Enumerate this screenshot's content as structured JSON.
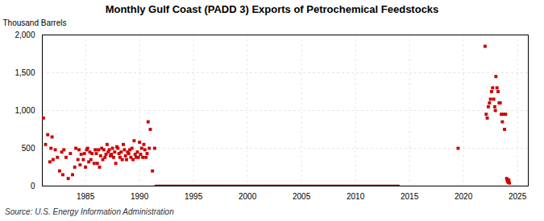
{
  "chart_data": {
    "type": "scatter",
    "title": "Monthly Gulf Coast (PADD 3) Exports of Petrochemical Feedstocks",
    "ylabel": "Thousand Barrels",
    "source": "Source: U.S. Energy Information Administration",
    "xlim": [
      1981,
      2026
    ],
    "xticks": [
      1985,
      1990,
      1995,
      2000,
      2005,
      2010,
      2015,
      2020,
      2025
    ],
    "ylim": [
      0,
      2000
    ],
    "yticks": [
      0,
      500,
      {
        "value": 1000,
        "label": "1,000"
      },
      {
        "value": 1500,
        "label": "1,500"
      },
      {
        "value": 2000,
        "label": "2,000"
      }
    ],
    "grid": true,
    "series": [
      {
        "type": "scatter",
        "color": "#CC0000",
        "marker": "square",
        "x": [
          1981.1,
          1981.3,
          1981.5,
          1981.7,
          1981.8,
          1981.9,
          1982.0,
          1982.2,
          1982.4,
          1982.6,
          1982.8,
          1982.9,
          1983.0,
          1983.2,
          1983.4,
          1983.6,
          1983.8,
          1984.0,
          1984.1,
          1984.3,
          1984.4,
          1984.5,
          1984.6,
          1984.8,
          1984.9,
          1985.0,
          1985.1,
          1985.2,
          1985.3,
          1985.4,
          1985.5,
          1985.6,
          1985.8,
          1985.9,
          1986.0,
          1986.1,
          1986.2,
          1986.3,
          1986.4,
          1986.5,
          1986.6,
          1986.7,
          1986.8,
          1986.9,
          1987.0,
          1987.1,
          1987.2,
          1987.3,
          1987.4,
          1987.5,
          1987.6,
          1987.7,
          1987.8,
          1987.9,
          1988.0,
          1988.1,
          1988.2,
          1988.3,
          1988.4,
          1988.5,
          1988.6,
          1988.7,
          1988.8,
          1988.9,
          1989.0,
          1989.1,
          1989.2,
          1989.3,
          1989.4,
          1989.5,
          1989.6,
          1989.7,
          1989.8,
          1989.9,
          1990.0,
          1990.1,
          1990.2,
          1990.3,
          1990.4,
          1990.5,
          1990.6,
          1990.7,
          1990.8,
          1990.9,
          1991.0,
          1991.2,
          1991.4
        ],
        "values": [
          900,
          550,
          680,
          320,
          500,
          650,
          350,
          480,
          380,
          200,
          450,
          150,
          480,
          380,
          100,
          430,
          150,
          250,
          500,
          350,
          480,
          280,
          420,
          350,
          430,
          250,
          480,
          500,
          320,
          450,
          350,
          430,
          300,
          480,
          430,
          300,
          480,
          250,
          400,
          500,
          350,
          480,
          380,
          420,
          550,
          450,
          480,
          400,
          420,
          500,
          380,
          450,
          300,
          520,
          500,
          430,
          380,
          450,
          350,
          550,
          480,
          400,
          350,
          450,
          430,
          480,
          380,
          500,
          350,
          600,
          420,
          380,
          450,
          380,
          580,
          420,
          500,
          380,
          550,
          480,
          380,
          430,
          850,
          500,
          750,
          200,
          500
        ]
      },
      {
        "type": "line",
        "color": "#8B1010",
        "x": [
          1991.5,
          2014.0
        ],
        "values": [
          0,
          0
        ]
      },
      {
        "type": "scatter",
        "color": "#CC0000",
        "marker": "square",
        "x": [
          2019.5,
          2022.0,
          2022.1,
          2022.2,
          2022.3,
          2022.4,
          2022.5,
          2022.6,
          2022.7,
          2022.8,
          2022.9,
          2022.95,
          2023.0,
          2023.1,
          2023.2,
          2023.3,
          2023.4,
          2023.5,
          2023.6,
          2023.7,
          2023.8,
          2023.9,
          2024.0,
          2024.05,
          2024.1,
          2024.15,
          2024.2,
          2024.25
        ],
        "values": [
          500,
          1850,
          950,
          900,
          1050,
          1100,
          1150,
          1250,
          1300,
          1150,
          1050,
          1000,
          1450,
          1300,
          1250,
          1100,
          1100,
          950,
          850,
          950,
          750,
          950,
          100,
          80,
          60,
          50,
          80,
          40
        ]
      }
    ]
  }
}
